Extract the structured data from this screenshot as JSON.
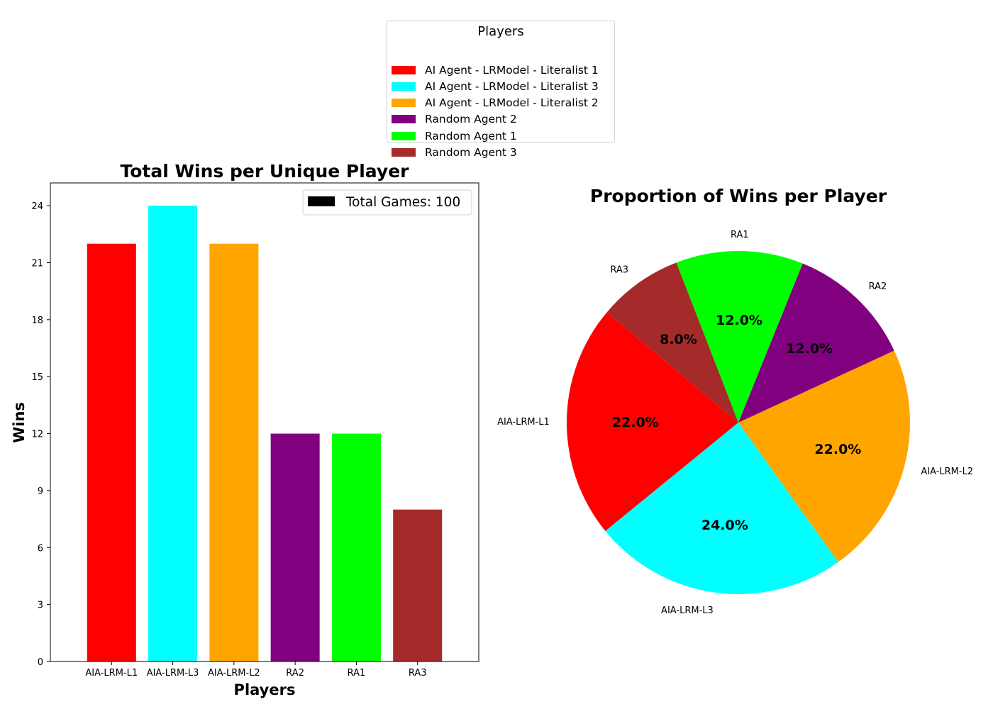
{
  "legend": {
    "title": "Players",
    "items": [
      {
        "label": "AI Agent - LRModel - Literalist 1",
        "color": "#ff0000"
      },
      {
        "label": "AI Agent - LRModel - Literalist 3",
        "color": "#00ffff"
      },
      {
        "label": "AI Agent - LRModel - Literalist 2",
        "color": "#ffa500"
      },
      {
        "label": "Random Agent 2",
        "color": "#800080"
      },
      {
        "label": "Random Agent 1",
        "color": "#00ff00"
      },
      {
        "label": "Random Agent 3",
        "color": "#a52a2a"
      }
    ]
  },
  "chart_data": [
    {
      "type": "bar",
      "title": "Total Wins per Unique Player",
      "xlabel": "Players",
      "ylabel": "Wins",
      "categories": [
        "AIA-LRM-L1",
        "AIA-LRM-L3",
        "AIA-LRM-L2",
        "RA2",
        "RA1",
        "RA3"
      ],
      "values": [
        22,
        24,
        22,
        12,
        12,
        8
      ],
      "colors": [
        "#ff0000",
        "#00ffff",
        "#ffa500",
        "#800080",
        "#00ff00",
        "#a52a2a"
      ],
      "ylim": [
        0,
        25.2
      ],
      "yticks": [
        0,
        3,
        6,
        9,
        12,
        15,
        18,
        21,
        24
      ],
      "legend": {
        "label": "Total Games: 100",
        "color": "#000000",
        "placement": "upper right"
      },
      "grid": false
    },
    {
      "type": "pie",
      "title": "Proportion of Wins per Player",
      "labels": [
        "AIA-LRM-L1",
        "AIA-LRM-L3",
        "AIA-LRM-L2",
        "RA2",
        "RA1",
        "RA3"
      ],
      "values": [
        22,
        24,
        22,
        12,
        12,
        8
      ],
      "percent_labels": [
        "22.0%",
        "24.0%",
        "22.0%",
        "12.0%",
        "12.0%",
        "8.0%"
      ],
      "colors": [
        "#ff0000",
        "#00ffff",
        "#ffa500",
        "#800080",
        "#00ff00",
        "#a52a2a"
      ],
      "start_angle_deg": 140,
      "direction": "counterclockwise"
    }
  ]
}
